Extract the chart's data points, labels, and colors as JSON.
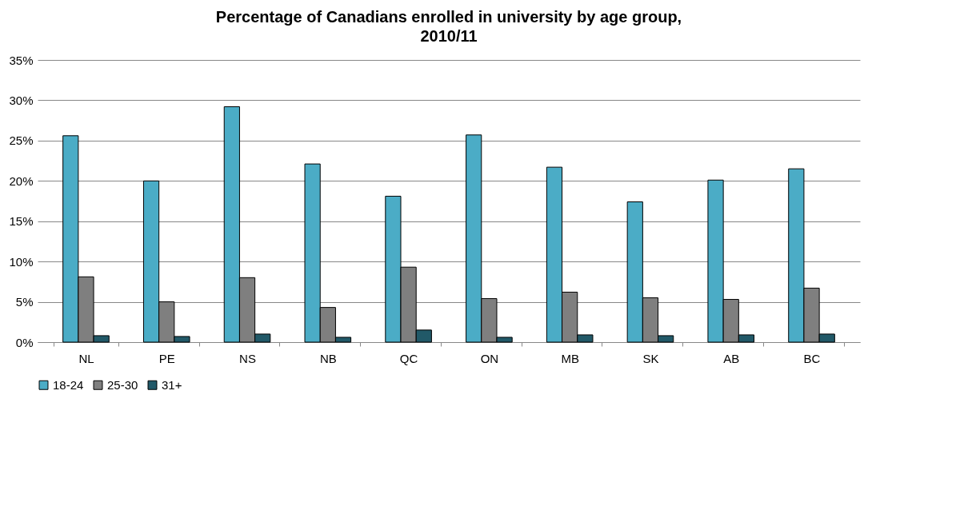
{
  "chart_data": {
    "type": "bar",
    "title": "Percentage of Canadians enrolled in university by age group, 2010/11",
    "categories": [
      "NL",
      "PE",
      "NS",
      "NB",
      "QC",
      "ON",
      "MB",
      "SK",
      "AB",
      "BC"
    ],
    "series": [
      {
        "name": "18-24",
        "color": "#4bacc6",
        "values": [
          25.6,
          20.0,
          29.2,
          22.1,
          18.1,
          25.7,
          21.7,
          17.4,
          20.1,
          21.5
        ]
      },
      {
        "name": "25-30",
        "color": "#7f7f7f",
        "values": [
          8.1,
          5.0,
          8.0,
          4.3,
          9.3,
          5.4,
          6.2,
          5.5,
          5.3,
          6.7
        ]
      },
      {
        "name": "31+",
        "color": "#215968",
        "values": [
          0.8,
          0.7,
          1.0,
          0.6,
          1.5,
          0.6,
          0.9,
          0.8,
          0.9,
          1.0
        ]
      }
    ],
    "ylim": [
      0,
      35
    ],
    "yticks": [
      {
        "value": 0,
        "label": "0%"
      },
      {
        "value": 5,
        "label": "5%"
      },
      {
        "value": 10,
        "label": "10%"
      },
      {
        "value": 15,
        "label": "15%"
      },
      {
        "value": 20,
        "label": "20%"
      },
      {
        "value": 25,
        "label": "25%"
      },
      {
        "value": 30,
        "label": "30%"
      },
      {
        "value": 35,
        "label": "35%"
      }
    ],
    "grid": "y",
    "legend": "bottom"
  }
}
